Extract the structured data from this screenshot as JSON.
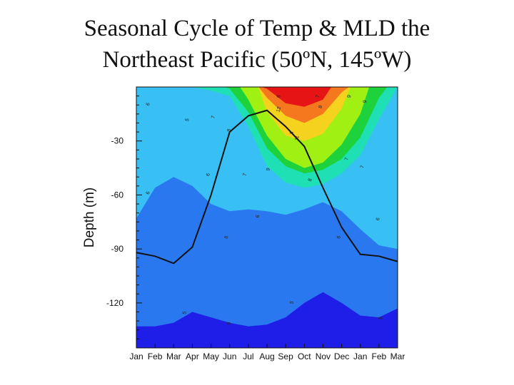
{
  "title_line1": "Seasonal Cycle of Temp & MLD the",
  "title_line2": "Northeast Pacific (50ºN, 145ºW)",
  "chart_data": {
    "type": "heatmap",
    "ylabel": "Depth (m)",
    "x_tick_labels": [
      "Jan",
      "Feb",
      "Mar",
      "Apr",
      "May",
      "Jun",
      "Jul",
      "Aug",
      "Sep",
      "Oct",
      "Nov",
      "Dec",
      "Jan",
      "Feb",
      "Mar"
    ],
    "y_ticks": [
      -30,
      -60,
      -90,
      -120
    ],
    "ylim": [
      -145,
      0
    ],
    "colors": {
      "t5": "#1e1ee8",
      "t6": "#2a78f0",
      "t7": "#38c0f5",
      "t8": "#1fe0b4",
      "t9": "#1ed23c",
      "t10": "#a0f014",
      "t11": "#f5d21e",
      "t12": "#f5781e",
      "t13": "#e61414",
      "mld_line": "#111111"
    },
    "temperature_contours": [
      {
        "level": 5,
        "depth": [
          -133,
          -133,
          -131,
          -125,
          -128,
          -131,
          -133,
          -132,
          -128,
          -120,
          -114,
          -120,
          -127,
          -128,
          -123
        ]
      },
      {
        "level": 6,
        "depth": [
          -73,
          -56,
          -50,
          -55,
          -65,
          -69,
          -68,
          -69,
          -71,
          -68,
          -64,
          -69,
          -79,
          -88,
          -90
        ]
      },
      {
        "level": 7,
        "depth": [
          0,
          0,
          0,
          0,
          -2,
          -5,
          -22,
          -44,
          -53,
          -56,
          -54,
          -48,
          -38,
          -18,
          0
        ]
      },
      {
        "level": 8,
        "depth": [
          null,
          null,
          null,
          null,
          null,
          -1,
          -14,
          -34,
          -44,
          -48,
          -46,
          -40,
          -28,
          -6,
          null
        ]
      },
      {
        "level": 9,
        "depth": [
          null,
          null,
          null,
          null,
          null,
          null,
          -7,
          -27,
          -40,
          -45,
          -42,
          -32,
          -15,
          null,
          null
        ]
      },
      {
        "level": 10,
        "depth": [
          null,
          null,
          null,
          null,
          null,
          null,
          null,
          -14,
          -27,
          -30,
          -26,
          -12,
          null,
          null,
          null
        ]
      },
      {
        "level": 11,
        "depth": [
          null,
          null,
          null,
          null,
          null,
          null,
          null,
          -6,
          -16,
          -20,
          -15,
          -3,
          null,
          null,
          null
        ]
      },
      {
        "level": 12,
        "depth": [
          null,
          null,
          null,
          null,
          null,
          null,
          null,
          -1,
          -9,
          -11,
          -7,
          null,
          null,
          null,
          null
        ]
      },
      {
        "level": 13,
        "depth": [
          null,
          null,
          null,
          null,
          null,
          null,
          null,
          null,
          -2,
          -3,
          null,
          null,
          null,
          null,
          null
        ]
      }
    ],
    "contour_labels": [
      "6",
      "5",
      "7",
      "8",
      "8",
      "6",
      "7",
      "9",
      "9",
      "8",
      "8",
      "12",
      "11",
      "7",
      "9",
      "7",
      "7",
      "6",
      "8",
      "6",
      "6",
      "6",
      "6",
      "5",
      "5",
      "5",
      "5"
    ],
    "series": [
      {
        "name": "",
        "x": [
          "Jan",
          "Feb",
          "Mar",
          "Apr",
          "May",
          "Jun",
          "Jul",
          "Aug",
          "Sep",
          "Oct",
          "Nov",
          "Dec",
          "Jan",
          "Feb",
          "Mar"
        ],
        "values": [
          -92,
          -94,
          -98,
          -89,
          -60,
          -25,
          -16,
          -13,
          -22,
          -33,
          -56,
          -78,
          -93,
          -94,
          -97
        ]
      }
    ],
    "grid": false
  }
}
